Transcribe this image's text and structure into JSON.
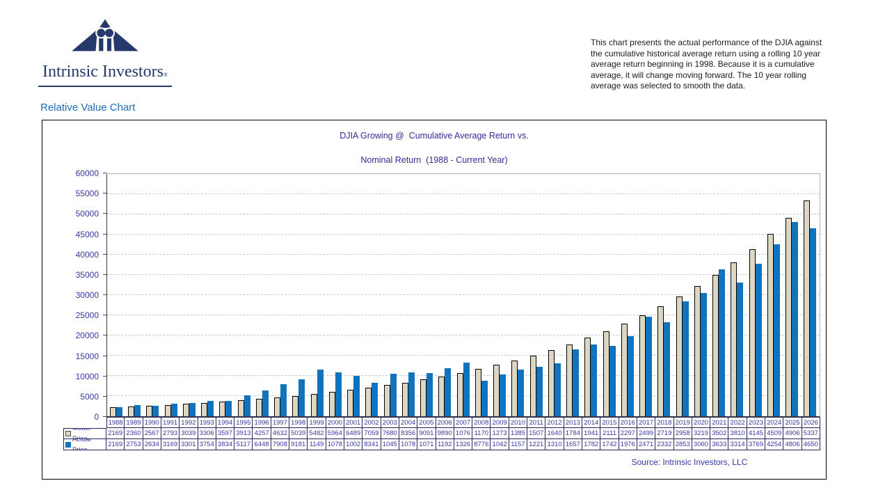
{
  "logo": {
    "name": "Intrinsic Investors",
    "registered": "®"
  },
  "page_heading": "Relative Value Chart",
  "intro_text": "This chart presents the actual performance of the DJIA against the cumulative historical average return using a rolling 10 year average return beginning in 1998. Because it is a cumulative average, it will change moving forward. The 10 year rolling average was selected to smooth the data.",
  "chart": {
    "title_line1": "DJIA Growing @  Cumulative Average Return vs.",
    "title_line2": "Nominal Return  (1988 - Current Year)",
    "source_text": "Source: Intrinsic Investors, LLC"
  },
  "chart_data": {
    "type": "bar",
    "title": "DJIA Growing @ Cumulative Average Return vs. Nominal Return (1988 - Current Year)",
    "categories": [
      "1988",
      "1989",
      "1990",
      "1991",
      "1992",
      "1993",
      "1994",
      "1995",
      "1996",
      "1997",
      "1998",
      "1999",
      "2000",
      "2001",
      "2002",
      "2003",
      "2004",
      "2005",
      "2006",
      "2007",
      "2008",
      "2009",
      "2010",
      "2011",
      "2012",
      "2013",
      "2014",
      "2015",
      "2016",
      "2017",
      "2018",
      "2019",
      "2020",
      "2021",
      "2022",
      "2023",
      "2024",
      "2025",
      "2026"
    ],
    "series": [
      {
        "name": "Model Price",
        "color": "#DCD6C2",
        "table_display_values": [
          "2169",
          "2360",
          "2567",
          "2793",
          "3039",
          "3306",
          "3597",
          "3913",
          "4257",
          "4632",
          "5039",
          "5482",
          "5964",
          "6489",
          "7059",
          "7680",
          "8356",
          "9091",
          "9890",
          "1076",
          "1170",
          "1273",
          "1385",
          "1507",
          "1640",
          "1784",
          "1941",
          "2111",
          "2297",
          "2499",
          "2719",
          "2958",
          "3219",
          "3502",
          "3810",
          "4145",
          "4509",
          "4906",
          "5337"
        ],
        "values": [
          2169,
          2360,
          2567,
          2793,
          3039,
          3306,
          3597,
          3913,
          4257,
          4632,
          5039,
          5482,
          5964,
          6489,
          7059,
          7680,
          8356,
          9091,
          9890,
          10760,
          11700,
          12730,
          13850,
          15070,
          16400,
          17840,
          19410,
          21110,
          22970,
          24990,
          27190,
          29580,
          32190,
          35020,
          38100,
          41450,
          45090,
          49060,
          53370
        ]
      },
      {
        "name": "Actual Price",
        "color": "#1173BE",
        "table_display_values": [
          "2169",
          "2753",
          "2634",
          "3169",
          "3301",
          "3754",
          "3834",
          "5117",
          "6448",
          "7908",
          "9181",
          "1149",
          "1078",
          "1002",
          "8341",
          "1045",
          "1078",
          "1071",
          "1192",
          "1326",
          "8776",
          "1042",
          "1157",
          "1221",
          "1310",
          "1657",
          "1782",
          "1742",
          "1976",
          "2471",
          "2332",
          "2853",
          "3060",
          "3633",
          "3314",
          "3769",
          "4254",
          "4806",
          "4650"
        ],
        "values": [
          2169,
          2753,
          2634,
          3169,
          3301,
          3754,
          3834,
          5117,
          6448,
          7908,
          9181,
          11490,
          10780,
          10020,
          8341,
          10450,
          10780,
          10710,
          11920,
          13260,
          8776,
          10420,
          11570,
          12210,
          13100,
          16570,
          17820,
          17420,
          19760,
          24710,
          23320,
          28530,
          30600,
          36330,
          33140,
          37690,
          42540,
          48060,
          46500
        ]
      }
    ],
    "ylim": [
      0,
      60000
    ],
    "ytick_step": 5000,
    "ytick_labels": [
      "0",
      "5000",
      "10000",
      "15000",
      "20000",
      "25000",
      "30000",
      "35000",
      "40000",
      "45000",
      "50000",
      "55000",
      "60000"
    ],
    "grid": "horizontal-dashed",
    "legend_position": "table-rows-left"
  },
  "colors": {
    "navy_logo": "#253A6B",
    "heading_blue": "#1F6DB8",
    "title_blue": "#2D2D91",
    "axis_table_text_blue": "#3636A3",
    "model_bar_fill": "#DCD6C2",
    "model_bar_border": "#000000",
    "actual_bar_fill": "#1173BE",
    "gridline_gray": "#C9C9C9",
    "table_border": "#26265E"
  }
}
